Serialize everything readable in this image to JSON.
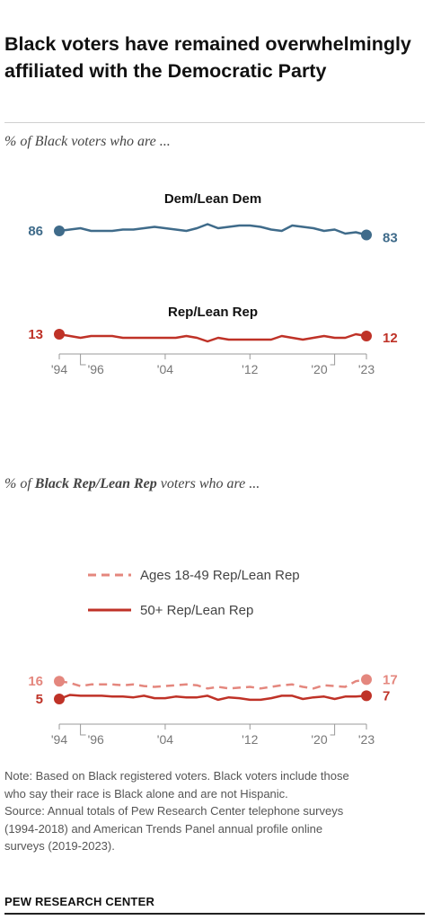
{
  "title": "Black voters have remained overwhelmingly affiliated with the Democratic Party",
  "colors": {
    "dem": "#3f6b8a",
    "rep": "#bf3227",
    "rep_young": "#e4877e",
    "axis": "#999999",
    "tick_text": "#777777"
  },
  "chart_data": [
    {
      "type": "line",
      "subtitle": "% of Black voters who are ...",
      "x": [
        1994,
        1995,
        1996,
        1997,
        1998,
        1999,
        2000,
        2001,
        2002,
        2003,
        2004,
        2005,
        2006,
        2007,
        2008,
        2009,
        2010,
        2011,
        2012,
        2013,
        2014,
        2015,
        2016,
        2017,
        2018,
        2019,
        2020,
        2021,
        2022,
        2023
      ],
      "tick_labels": [
        "'94",
        "'96",
        "'04",
        "'12",
        "'20",
        "'23"
      ],
      "ylim": [
        0,
        100
      ],
      "series": [
        {
          "name": "Dem/Lean Dem",
          "values": [
            86,
            87,
            88,
            86,
            86,
            86,
            87,
            87,
            88,
            89,
            88,
            87,
            86,
            88,
            91,
            88,
            89,
            90,
            90,
            89,
            87,
            86,
            90,
            89,
            88,
            86,
            87,
            84,
            85,
            83
          ],
          "start_label": "86",
          "end_label": "83"
        },
        {
          "name": "Rep/Lean Rep",
          "values": [
            13,
            12,
            11,
            12,
            12,
            12,
            11,
            11,
            11,
            11,
            11,
            11,
            12,
            11,
            9,
            11,
            10,
            10,
            10,
            10,
            10,
            12,
            11,
            10,
            11,
            12,
            11,
            11,
            13,
            12
          ],
          "start_label": "13",
          "end_label": "12"
        }
      ]
    },
    {
      "type": "line",
      "subtitle_prefix": "% of ",
      "subtitle_bold": "Black Rep/Lean Rep",
      "subtitle_suffix": " voters who are ...",
      "x": [
        1994,
        1995,
        1996,
        1997,
        1998,
        1999,
        2000,
        2001,
        2002,
        2003,
        2004,
        2005,
        2006,
        2007,
        2008,
        2009,
        2010,
        2011,
        2012,
        2013,
        2014,
        2015,
        2016,
        2017,
        2018,
        2019,
        2020,
        2021,
        2022,
        2023
      ],
      "tick_labels": [
        "'94",
        "'96",
        "'04",
        "'12",
        "'20",
        "'23"
      ],
      "ylim": [
        0,
        20
      ],
      "legend": [
        "Ages 18-49 Rep/Lean Rep",
        "50+ Rep/Lean Rep"
      ],
      "series": [
        {
          "name": "Ages 18-49 Rep/Lean Rep",
          "style": "dashed",
          "values": [
            16,
            15,
            13,
            14,
            14,
            14,
            13.5,
            14,
            13,
            12.5,
            13,
            13.5,
            14,
            13.5,
            11.5,
            12.5,
            11.5,
            12,
            12.5,
            11.5,
            12.5,
            13.5,
            14,
            12.5,
            11.5,
            13.5,
            13,
            12.5,
            16,
            17
          ],
          "start_label": "16",
          "end_label": "17"
        },
        {
          "name": "50+ Rep/Lean Rep",
          "style": "solid",
          "values": [
            5,
            7.5,
            7,
            7,
            7,
            6.5,
            6.5,
            6,
            7,
            5.5,
            5.5,
            6.5,
            6,
            6,
            7,
            4.5,
            6,
            5.5,
            4.5,
            4.5,
            5.5,
            7,
            7,
            5,
            6,
            6.5,
            5,
            6.5,
            6.5,
            7
          ],
          "start_label": "5",
          "end_label": "7"
        }
      ]
    }
  ],
  "note_lines": [
    "Note: Based on Black registered voters. Black voters include those",
    "who say their race is Black alone and are not Hispanic.",
    "Source: Annual totals of Pew Research Center telephone surveys",
    "(1994-2018) and American Trends Panel annual profile online",
    "surveys (2019-2023)."
  ],
  "footer": "PEW RESEARCH CENTER"
}
